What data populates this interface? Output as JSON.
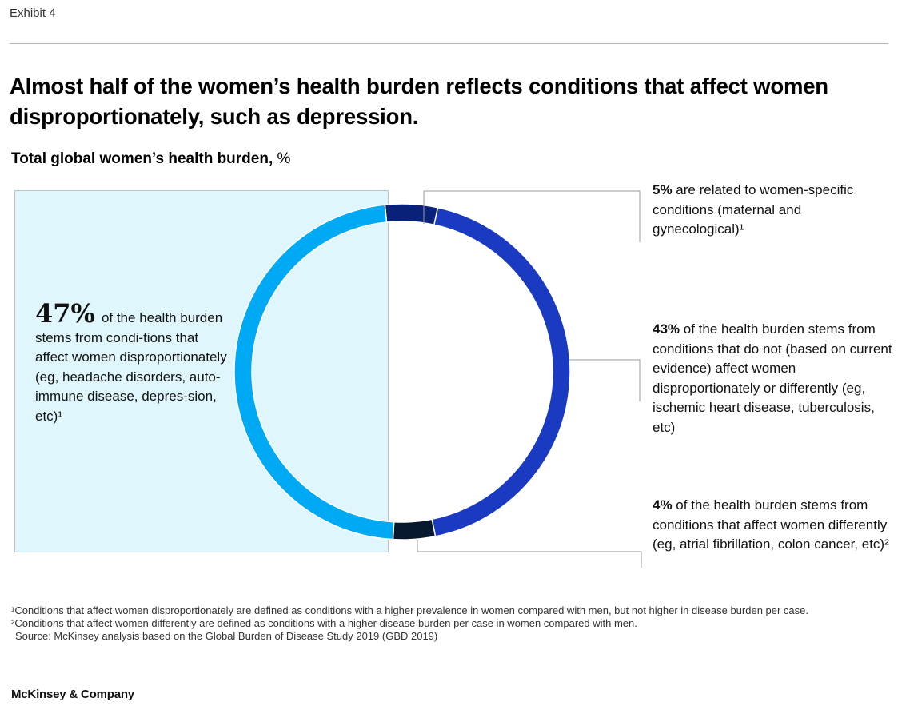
{
  "header": {
    "exhibit": "Exhibit 4",
    "title": "Almost half of the women’s health burden reflects conditions that affect women disproportionately, such as depression.",
    "subtitle_bold": "Total global women’s health burden,",
    "subtitle_unit": " %"
  },
  "colors": {
    "women_specific": "#0a2179",
    "not_disproportionate": "#1a3bc1",
    "differently": "#07192e",
    "disproportionately": "#00a9f4",
    "highlight_bg": "#dff6fd"
  },
  "chart_data": {
    "type": "pie",
    "title": "Total global women’s health burden, %",
    "slices": [
      {
        "label": "Women-specific conditions (maternal and gynecological)",
        "value": 5
      },
      {
        "label": "Conditions that do not affect women disproportionately or differently",
        "value": 43
      },
      {
        "label": "Conditions that affect women differently",
        "value": 4
      },
      {
        "label": "Conditions that affect women disproportionately",
        "value": 47
      }
    ]
  },
  "callouts": {
    "left": {
      "pct": "47%",
      "text": "of the health burden stems from condi-tions that affect women disproportionately (eg, headache disorders, auto-immune disease, depres-sion, etc)¹"
    },
    "top": {
      "pct": "5%",
      "text": " are related to women-specific conditions (maternal and gynecological)¹"
    },
    "mid": {
      "pct": "43%",
      "text": " of the health burden stems from conditions that do not (based on current evidence) affect women disproportionately or differently (eg, ischemic heart disease, tuberculosis, etc)"
    },
    "bot": {
      "pct": "4%",
      "text": " of the health burden stems from conditions that affect women differently (eg, atrial fibrillation, colon cancer, etc)²"
    }
  },
  "footnotes": {
    "note1": "¹Conditions that affect women disproportionately are defined as conditions with a higher prevalence in women compared with men, but not higher in disease burden per case.",
    "note2": "²Conditions that affect women differently are defined as conditions with a higher disease burden per case in women compared with men.",
    "source": "Source: McKinsey analysis based on the Global Burden of Disease Study 2019 (GBD 2019)"
  },
  "brand": "McKinsey & Company"
}
